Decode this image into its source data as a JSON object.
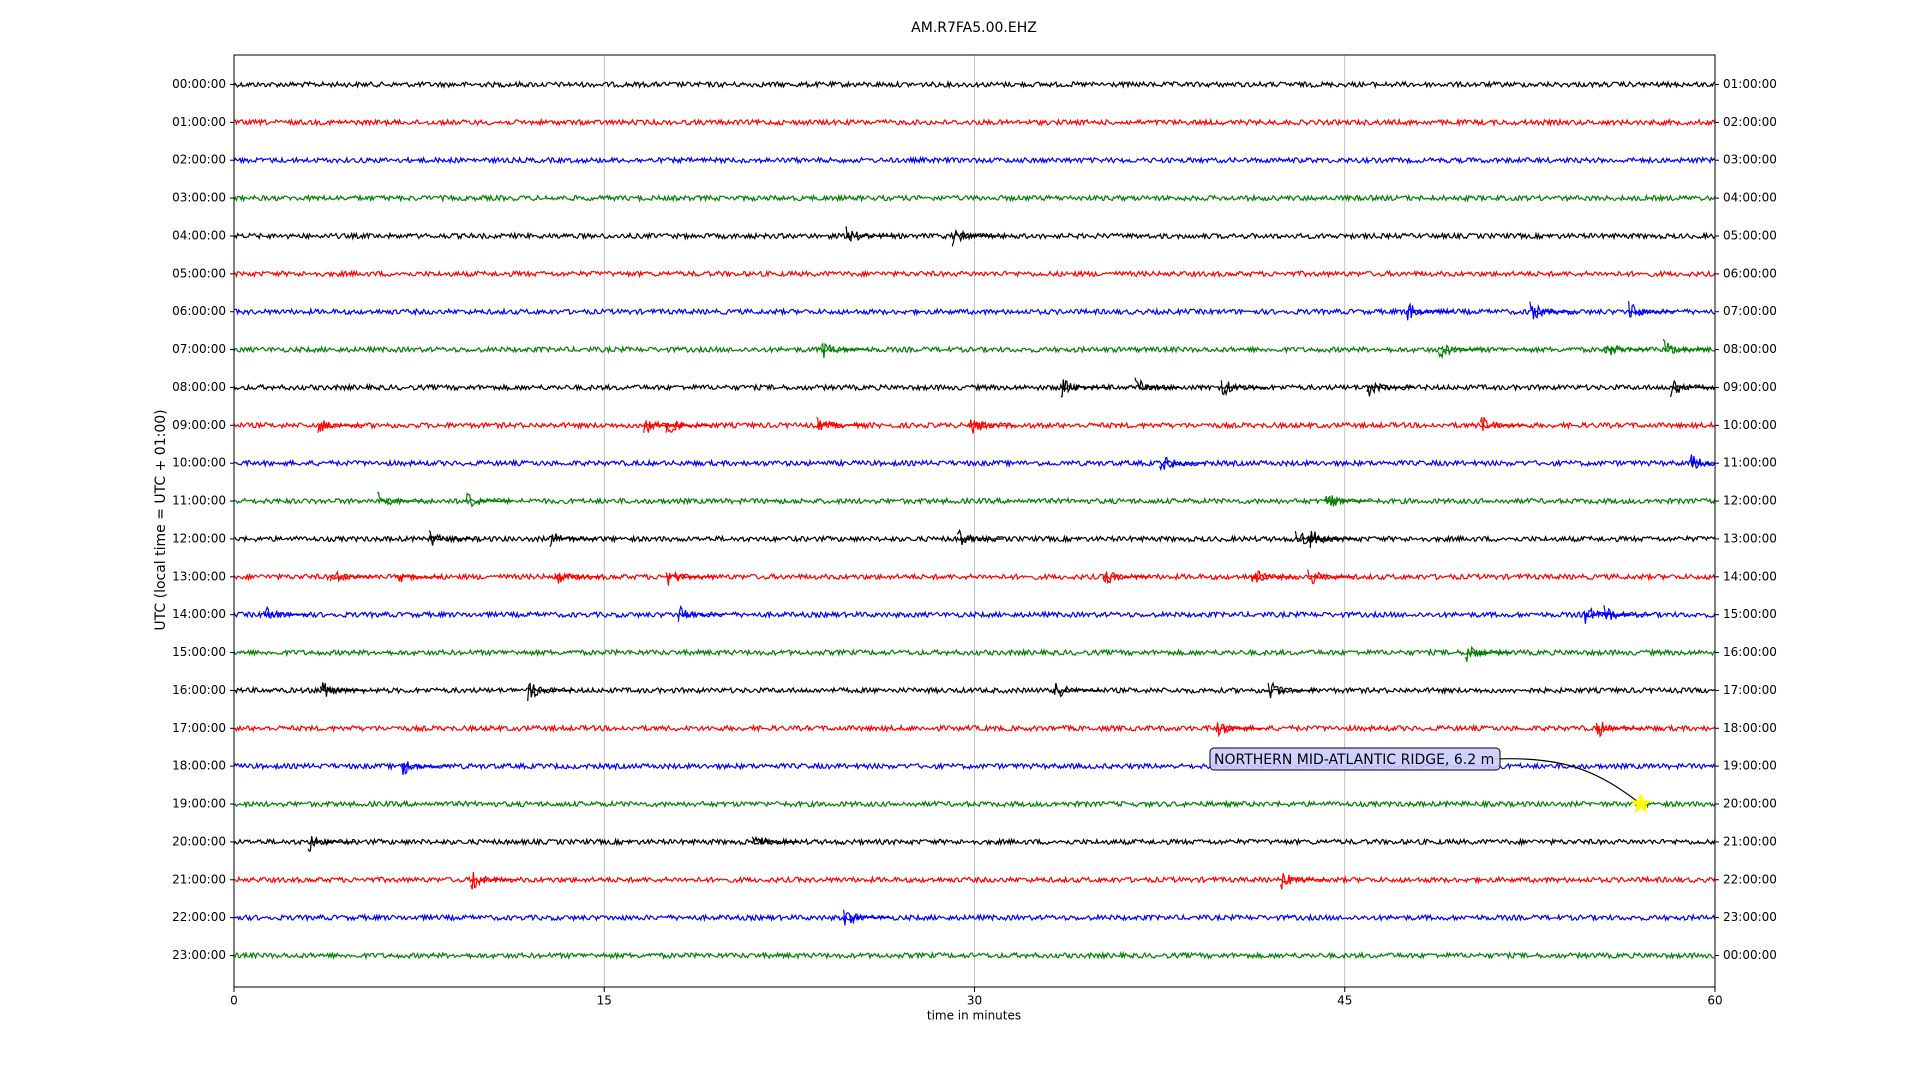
{
  "chart_data": {
    "type": "helicorder",
    "title": "AM.R7FA5.00.EHZ",
    "x_label": "time in minutes",
    "y_label": "UTC (local time = UTC + 01:00)",
    "xlim": [
      0,
      60
    ],
    "xticks": [
      0,
      15,
      30,
      45,
      60
    ],
    "grid": true,
    "colors": [
      "#000000",
      "#ff0000",
      "#0000ff",
      "#008000"
    ],
    "rows": [
      {
        "label": "00:00:00",
        "label_right": "01:00:00",
        "events": []
      },
      {
        "label": "01:00:00",
        "label_right": "02:00:00",
        "events": []
      },
      {
        "label": "02:00:00",
        "label_right": "03:00:00",
        "events": []
      },
      {
        "label": "03:00:00",
        "label_right": "04:00:00",
        "events": []
      },
      {
        "label": "04:00:00",
        "label_right": "05:00:00",
        "events": [
          24.8,
          29.1
        ]
      },
      {
        "label": "05:00:00",
        "label_right": "06:00:00",
        "events": []
      },
      {
        "label": "06:00:00",
        "label_right": "07:00:00",
        "events": [
          47.5,
          52.5,
          56.5
        ]
      },
      {
        "label": "07:00:00",
        "label_right": "08:00:00",
        "events": [
          23.8,
          48.8,
          55.5,
          57.9
        ]
      },
      {
        "label": "08:00:00",
        "label_right": "09:00:00",
        "events": [
          33.5,
          36.5,
          40,
          45.9,
          58.2
        ]
      },
      {
        "label": "09:00:00",
        "label_right": "10:00:00",
        "events": [
          3.4,
          16.6,
          17.5,
          23.6,
          29.8,
          50.5
        ]
      },
      {
        "label": "10:00:00",
        "label_right": "11:00:00",
        "events": [
          37.5,
          59
        ]
      },
      {
        "label": "11:00:00",
        "label_right": "12:00:00",
        "events": [
          5.8,
          9.4,
          44.2
        ]
      },
      {
        "label": "12:00:00",
        "label_right": "13:00:00",
        "events": [
          7.9,
          12.8,
          29.3,
          43,
          43.6
        ]
      },
      {
        "label": "13:00:00",
        "label_right": "14:00:00",
        "events": [
          3.9,
          6.5,
          13,
          17.5,
          35.2,
          41.2,
          43.5
        ]
      },
      {
        "label": "14:00:00",
        "label_right": "15:00:00",
        "events": [
          1.2,
          18,
          54.7,
          55.5
        ]
      },
      {
        "label": "15:00:00",
        "label_right": "16:00:00",
        "events": [
          49.9
        ]
      },
      {
        "label": "16:00:00",
        "label_right": "17:00:00",
        "events": [
          3.5,
          11.9,
          33.2,
          41.9
        ]
      },
      {
        "label": "17:00:00",
        "label_right": "18:00:00",
        "events": [
          39.8,
          55.2
        ]
      },
      {
        "label": "18:00:00",
        "label_right": "19:00:00",
        "events": [
          6.8
        ]
      },
      {
        "label": "19:00:00",
        "label_right": "20:00:00",
        "events": []
      },
      {
        "label": "20:00:00",
        "label_right": "21:00:00",
        "events": [
          3,
          21
        ]
      },
      {
        "label": "21:00:00",
        "label_right": "22:00:00",
        "events": [
          9.6,
          42.4
        ]
      },
      {
        "label": "22:00:00",
        "label_right": "23:00:00",
        "events": [
          24.7
        ]
      },
      {
        "label": "23:00:00",
        "label_right": "00:00:00",
        "events": []
      }
    ],
    "annotation": {
      "text": "NORTHERN MID-ATLANTIC RIDGE, 6.2 m",
      "x": 57,
      "row": 19,
      "marker_color": "#ffff00"
    }
  }
}
